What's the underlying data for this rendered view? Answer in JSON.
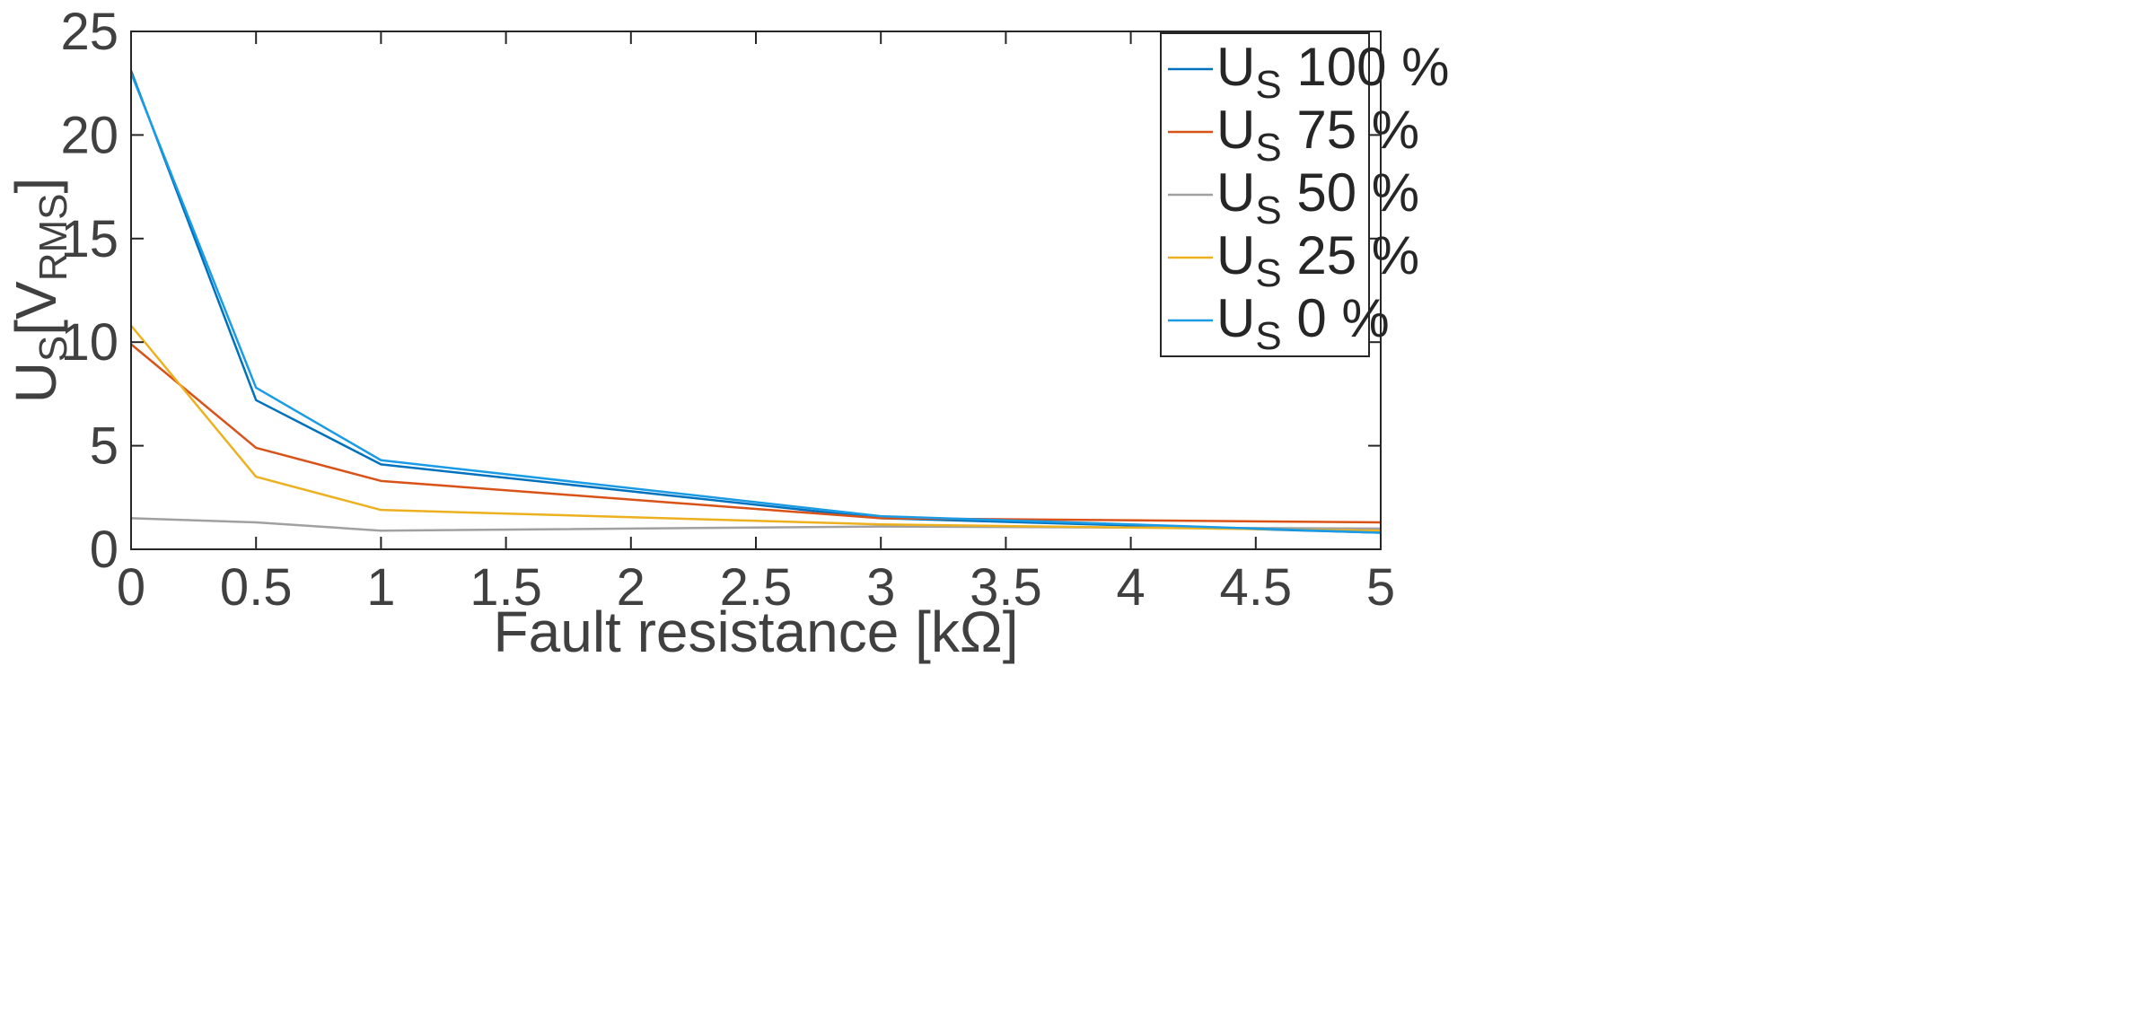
{
  "chart_data": {
    "type": "line",
    "xlabel": "Fault resistance [kΩ]",
    "ylabel": {
      "main": "U",
      "sub": "S",
      "bracket_open": "[V",
      "unit_sub": "RMS",
      "bracket_close": "]"
    },
    "xlim": [
      0,
      5
    ],
    "ylim": [
      0,
      25
    ],
    "x_ticks": [
      "0",
      "0.5",
      "1",
      "1.5",
      "2",
      "2.5",
      "3",
      "3.5",
      "4",
      "4.5",
      "5"
    ],
    "y_ticks": [
      "0",
      "5",
      "10",
      "15",
      "20",
      "25"
    ],
    "grid": false,
    "legend_position": "top-right",
    "x": [
      0,
      0.5,
      1,
      3,
      5
    ],
    "series": [
      {
        "name": "U_S 100 %",
        "label_main": "U",
        "label_sub": "S",
        "label_rest": " 100 %",
        "color": "#0072BD",
        "values": [
          23.1,
          7.2,
          4.1,
          1.5,
          0.8
        ]
      },
      {
        "name": "U_S 75 %",
        "label_main": "U",
        "label_sub": "S",
        "label_rest": " 75 %",
        "color": "#D95319",
        "values": [
          9.9,
          4.9,
          3.3,
          1.5,
          1.3
        ]
      },
      {
        "name": "U_S 50 %",
        "label_main": "U",
        "label_sub": "S",
        "label_rest": " 50 %",
        "color": "#A0A0A0",
        "values": [
          1.5,
          1.3,
          0.9,
          1.1,
          1.0
        ]
      },
      {
        "name": "U_S 25 %",
        "label_main": "U",
        "label_sub": "S",
        "label_rest": " 25 %",
        "color": "#EDB120",
        "values": [
          10.8,
          3.5,
          1.9,
          1.2,
          0.9
        ]
      },
      {
        "name": "U_S 0 %",
        "label_main": "U",
        "label_sub": "S",
        "label_rest": " 0 %",
        "color": "#1A9BE6",
        "values": [
          23.0,
          7.8,
          4.3,
          1.6,
          0.8
        ]
      }
    ]
  }
}
